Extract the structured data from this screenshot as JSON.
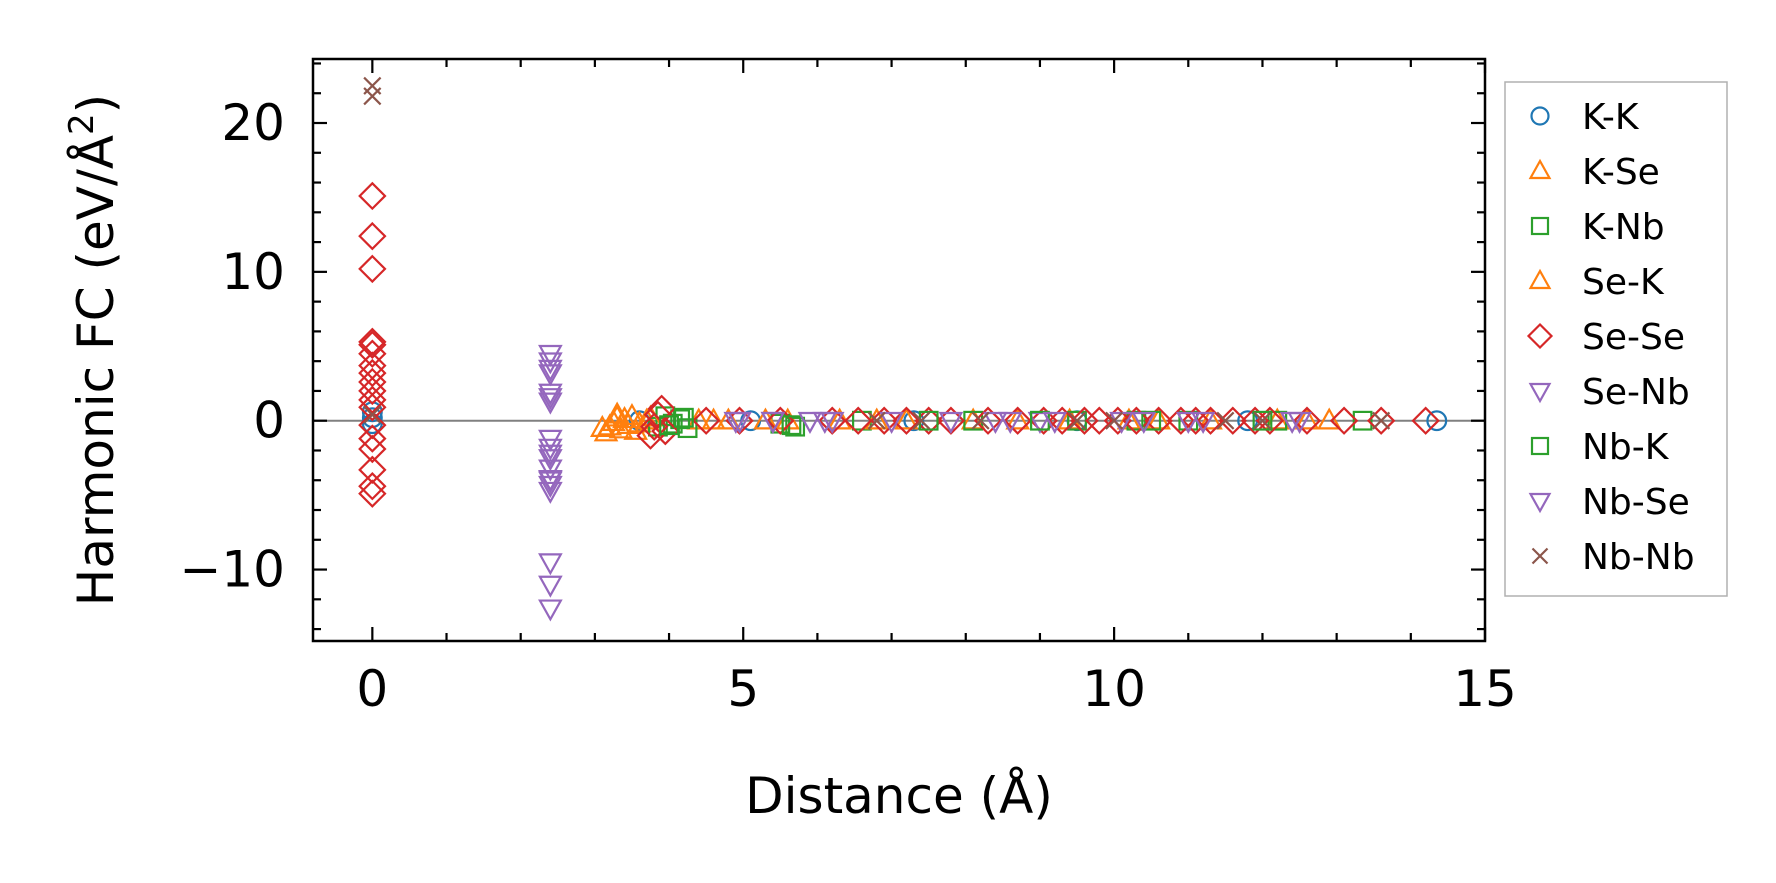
{
  "chart_data": {
    "type": "scatter",
    "title": "",
    "xlabel": "Distance (Å)",
    "ylabel_main": "Harmonic FC (eV/Å",
    "ylabel_sup": "2",
    "ylabel_close": ")",
    "xlim": [
      -0.8,
      15
    ],
    "ylim": [
      -14.8,
      24.3
    ],
    "xticks": [
      0,
      5,
      10,
      15
    ],
    "yticks": [
      -10,
      0,
      10,
      20
    ],
    "xtick_labels": [
      "0",
      "5",
      "10",
      "15"
    ],
    "ytick_labels": [
      "−10",
      "0",
      "10",
      "20"
    ],
    "zero_line": true,
    "legend_position": "outside-right",
    "series": [
      {
        "name": "K-K",
        "marker": "circle",
        "color": "#1f77b4",
        "x": [
          0,
          0,
          0,
          14.35,
          3.6,
          5.1,
          7.3,
          9.5,
          11.8
        ],
        "y": [
          0.2,
          0.6,
          -0.2,
          0,
          0,
          0,
          0,
          0,
          0
        ]
      },
      {
        "name": "K-Se",
        "marker": "triangle-up",
        "color": "#ff7f0e",
        "x": [
          3.15,
          3.2,
          3.25,
          3.3,
          3.35,
          3.4,
          3.45,
          3.5,
          3.6,
          3.7,
          4.4,
          4.8,
          5.6,
          6.3,
          7.2,
          8.1,
          9.4,
          10.2,
          11.3,
          12.2,
          12.9
        ],
        "y": [
          -0.8,
          -0.4,
          -0.1,
          0.2,
          -0.6,
          0.1,
          -0.3,
          0.3,
          -0.2,
          0,
          0,
          0,
          0,
          0,
          0,
          0,
          0,
          0,
          0,
          0,
          0
        ]
      },
      {
        "name": "K-Nb",
        "marker": "square",
        "color": "#2ca02c",
        "x": [
          3.85,
          3.95,
          4.05,
          4.15,
          4.25,
          5.5,
          5.7,
          6.6,
          8.1,
          9.5,
          10.3,
          11.0,
          12.2,
          13.35
        ],
        "y": [
          -0.4,
          0.3,
          -0.2,
          0.1,
          -0.5,
          -0.2,
          -0.4,
          0,
          0,
          0,
          0,
          0,
          0,
          0
        ]
      },
      {
        "name": "Se-K",
        "marker": "triangle-up",
        "color": "#ff7f0e",
        "x": [
          3.1,
          3.3,
          3.55,
          3.75,
          4.6,
          5.3,
          6.8,
          8.7,
          10.6,
          12.6
        ],
        "y": [
          -0.5,
          0.4,
          -0.7,
          0.2,
          0,
          0,
          0,
          0,
          0,
          0
        ]
      },
      {
        "name": "Se-Se",
        "marker": "diamond",
        "color": "#d62728",
        "x": [
          0,
          0,
          0,
          0,
          0,
          0,
          0,
          0,
          0,
          0,
          0,
          0,
          0,
          0,
          0,
          0,
          0,
          0,
          3.75,
          3.8,
          3.85,
          3.9,
          3.95,
          4.5,
          4.95,
          5.5,
          6.2,
          6.55,
          6.9,
          7.2,
          7.5,
          7.8,
          8.3,
          8.7,
          9.05,
          9.3,
          9.6,
          9.8,
          10.05,
          10.3,
          10.6,
          10.9,
          11.1,
          11.3,
          11.6,
          11.9,
          12.1,
          12.6,
          13.1,
          13.6,
          14.2
        ],
        "y": [
          15.1,
          12.4,
          10.2,
          5.1,
          4.5,
          3.7,
          3.2,
          2.6,
          2.0,
          1.4,
          0.9,
          -0.3,
          -1.2,
          -1.9,
          -3.3,
          -4.4,
          -4.9,
          5.3,
          -1.0,
          -0.4,
          0.4,
          0.8,
          -0.7,
          0,
          0,
          0,
          0,
          0,
          0,
          0,
          0,
          0,
          0,
          0,
          0,
          0,
          0,
          0,
          0,
          0,
          0,
          0,
          0,
          0,
          0,
          0,
          0,
          0,
          0,
          0,
          0
        ]
      },
      {
        "name": "Se-Nb",
        "marker": "triangle-down",
        "color": "#9467bd",
        "x": [
          2.4,
          2.4,
          2.4,
          2.4,
          2.4,
          2.4,
          2.4,
          2.4,
          2.4,
          2.4,
          2.4,
          2.4,
          2.4,
          2.4,
          2.4,
          4.9,
          5.4,
          6.1,
          7.0,
          8.4,
          9.0,
          10.1,
          11.2,
          12.4
        ],
        "y": [
          4.5,
          4.0,
          3.2,
          1.9,
          1.3,
          -1.2,
          -1.8,
          -2.5,
          -3.2,
          -3.9,
          -4.3,
          -4.7,
          -9.5,
          -11.0,
          -12.6,
          0,
          0,
          0,
          0,
          0,
          0,
          0,
          0,
          0
        ]
      },
      {
        "name": "Nb-K",
        "marker": "square",
        "color": "#2ca02c",
        "x": [
          4.0,
          4.2,
          5.65,
          7.5,
          9.0,
          10.5,
          12.0
        ],
        "y": [
          -0.3,
          0.2,
          -0.3,
          0,
          0,
          0,
          0
        ]
      },
      {
        "name": "Nb-Se",
        "marker": "triangle-down",
        "color": "#9467bd",
        "x": [
          2.4,
          2.4,
          2.4,
          2.4,
          4.95,
          5.4,
          5.9,
          6.2,
          7.8,
          8.6,
          9.2,
          10.4,
          11.0,
          12.5
        ],
        "y": [
          3.5,
          1.6,
          -2.2,
          -4.0,
          0,
          0,
          0,
          0,
          0,
          0,
          0,
          0,
          0,
          0
        ]
      },
      {
        "name": "Nb-Nb",
        "marker": "x",
        "color": "#8c564b",
        "x": [
          0,
          0,
          0,
          6.8,
          7.4,
          8.2,
          9.5,
          10.0,
          11.5,
          12.0,
          13.6
        ],
        "y": [
          22.5,
          21.8,
          0.4,
          0,
          0,
          0,
          0,
          0,
          0,
          0,
          0
        ]
      }
    ]
  }
}
